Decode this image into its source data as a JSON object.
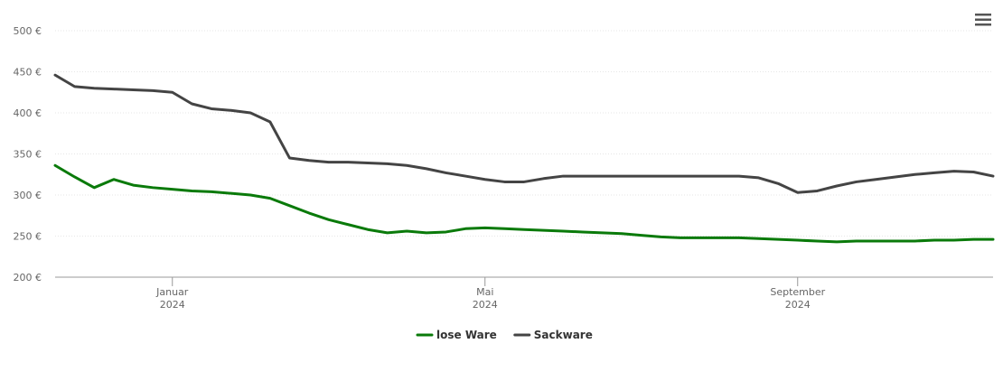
{
  "chart_data": {
    "type": "line",
    "categories": [
      null,
      null,
      null,
      null,
      null,
      null,
      "Januar 2024",
      null,
      null,
      null,
      null,
      null,
      null,
      null,
      null,
      null,
      null,
      null,
      null,
      null,
      null,
      null,
      "Mai 2024",
      null,
      null,
      null,
      null,
      null,
      null,
      null,
      null,
      null,
      null,
      null,
      null,
      null,
      null,
      null,
      "September 2024",
      null,
      null,
      null,
      null,
      null,
      null,
      null,
      null,
      null,
      null
    ],
    "series": [
      {
        "name": "lose Ware",
        "color": "#0a7a0a",
        "values": [
          336,
          322,
          309,
          319,
          312,
          309,
          307,
          305,
          304,
          302,
          300,
          296,
          287,
          278,
          270,
          264,
          258,
          254,
          256,
          254,
          255,
          259,
          260,
          259,
          258,
          257,
          256,
          255,
          254,
          253,
          251,
          249,
          248,
          248,
          248,
          248,
          247,
          246,
          245,
          244,
          243,
          244,
          244,
          244,
          244,
          245,
          245,
          246,
          246
        ]
      },
      {
        "name": "Sackware",
        "color": "#444444",
        "values": [
          446,
          432,
          430,
          429,
          428,
          427,
          425,
          411,
          405,
          403,
          400,
          389,
          345,
          342,
          340,
          340,
          339,
          338,
          336,
          332,
          327,
          323,
          319,
          316,
          316,
          320,
          323,
          323,
          323,
          323,
          323,
          323,
          323,
          323,
          323,
          323,
          321,
          314,
          303,
          305,
          311,
          316,
          319,
          322,
          325,
          327,
          329,
          328,
          323
        ]
      }
    ],
    "ylim": [
      200,
      500
    ],
    "yticks": [
      {
        "value": 200,
        "label": "200 €"
      },
      {
        "value": 250,
        "label": "250 €"
      },
      {
        "value": 300,
        "label": "300 €"
      },
      {
        "value": 350,
        "label": "350 €"
      },
      {
        "value": 400,
        "label": "400 €"
      },
      {
        "value": 450,
        "label": "450 €"
      },
      {
        "value": 500,
        "label": "500 €"
      }
    ],
    "grid": true
  }
}
